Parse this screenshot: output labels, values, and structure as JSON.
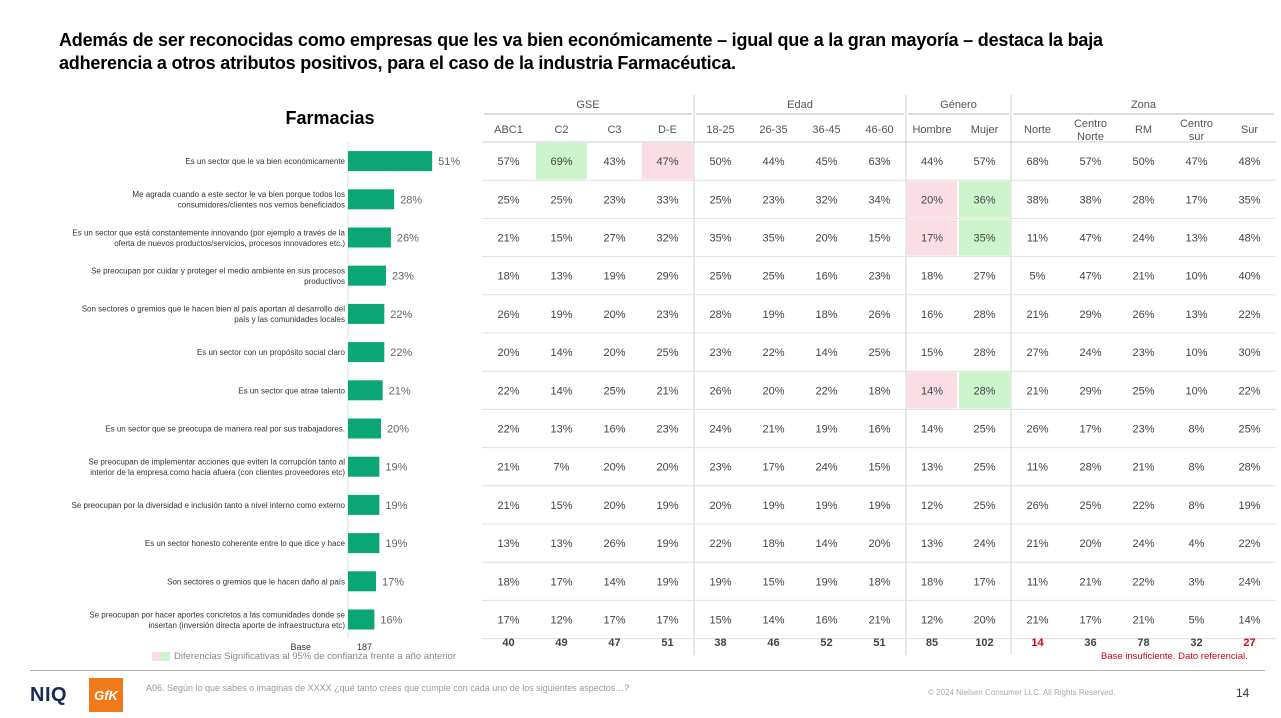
{
  "title": "Además de ser reconocidas como empresas que les va bien económicamente – igual que a la gran mayoría – destaca la baja adherencia a otros atributos positivos, para el caso de la industria Farmacéutica.",
  "chart_data": {
    "type": "bar",
    "title": "Farmacias",
    "orientation": "horizontal",
    "categories": [
      [
        "Es un sector que le va bien económicamente"
      ],
      [
        "Me agrada cuando a este sector le va bien porque todos los",
        "consumidores/clientes nos vemos beneficiados"
      ],
      [
        "Es un sector que está constantemente innovando (por ejemplo a través de la",
        "oferta de nuevos productos/servicios, procesos innovadores etc.)"
      ],
      [
        "Se preocupan por cuidar y proteger el medio ambiente en sus procesos",
        "productivos"
      ],
      [
        "Son sectores o gremios que le hacen bien al país aportan al desarrollo del",
        "país y las comunidades locales"
      ],
      [
        "Es un sector con un propósito social claro"
      ],
      [
        "Es un sector que atrae talento"
      ],
      [
        "Es un sector que se preocupa de manera real por sus trabajadores."
      ],
      [
        "Se preocupan de implementar acciones que eviten la corrupción tanto al",
        "interior de la empresa como hacia afuera (con clientes proveedores etc)"
      ],
      [
        "Se preocupan por la diversidad e inclusión tanto a nivel interno como externo"
      ],
      [
        "Es un sector honesto coherente entre lo que dice y hace"
      ],
      [
        "Son sectores o gremios que le hacen daño al país"
      ],
      [
        "Se preocupan por hacer aportes concretos a las comunidades donde se",
        "insertan (inversión directa aporte de infraestructura etc)"
      ]
    ],
    "values": [
      51,
      28,
      26,
      23,
      22,
      22,
      21,
      20,
      19,
      19,
      19,
      17,
      16
    ],
    "value_labels": [
      "51%",
      "28%",
      "26%",
      "23%",
      "22%",
      "22%",
      "21%",
      "20%",
      "19%",
      "19%",
      "19%",
      "17%",
      "16%"
    ],
    "bar_color": "#0aa676",
    "base_label": "Base",
    "base_value": "187"
  },
  "table": {
    "groups": [
      {
        "label": "GSE",
        "span": 4
      },
      {
        "label": "Edad",
        "span": 4
      },
      {
        "label": "Género",
        "span": 2
      },
      {
        "label": "Zona",
        "span": 5
      }
    ],
    "columns": [
      "ABC1",
      "C2",
      "C3",
      "D-E",
      "18-25",
      "26-35",
      "36-45",
      "46-60",
      "Hombre",
      "Mujer",
      "Norte",
      "Centro Norte",
      "RM",
      "Centro sur",
      "Sur"
    ],
    "rows": [
      [
        "57%",
        "69%",
        "43%",
        "47%",
        "50%",
        "44%",
        "45%",
        "63%",
        "44%",
        "57%",
        "68%",
        "57%",
        "50%",
        "47%",
        "48%"
      ],
      [
        "25%",
        "25%",
        "23%",
        "33%",
        "25%",
        "23%",
        "32%",
        "34%",
        "20%",
        "36%",
        "38%",
        "38%",
        "28%",
        "17%",
        "35%"
      ],
      [
        "21%",
        "15%",
        "27%",
        "32%",
        "35%",
        "35%",
        "20%",
        "15%",
        "17%",
        "35%",
        "11%",
        "47%",
        "24%",
        "13%",
        "48%"
      ],
      [
        "18%",
        "13%",
        "19%",
        "29%",
        "25%",
        "25%",
        "16%",
        "23%",
        "18%",
        "27%",
        "5%",
        "47%",
        "21%",
        "10%",
        "40%"
      ],
      [
        "26%",
        "19%",
        "20%",
        "23%",
        "28%",
        "19%",
        "18%",
        "26%",
        "16%",
        "28%",
        "21%",
        "29%",
        "26%",
        "13%",
        "22%"
      ],
      [
        "20%",
        "14%",
        "20%",
        "25%",
        "23%",
        "22%",
        "14%",
        "25%",
        "15%",
        "28%",
        "27%",
        "24%",
        "23%",
        "10%",
        "30%"
      ],
      [
        "22%",
        "14%",
        "25%",
        "21%",
        "26%",
        "20%",
        "22%",
        "18%",
        "14%",
        "28%",
        "21%",
        "29%",
        "25%",
        "10%",
        "22%"
      ],
      [
        "22%",
        "13%",
        "16%",
        "23%",
        "24%",
        "21%",
        "19%",
        "16%",
        "14%",
        "25%",
        "26%",
        "17%",
        "23%",
        "8%",
        "25%"
      ],
      [
        "21%",
        "7%",
        "20%",
        "20%",
        "23%",
        "17%",
        "24%",
        "15%",
        "13%",
        "25%",
        "11%",
        "28%",
        "21%",
        "8%",
        "28%"
      ],
      [
        "21%",
        "15%",
        "20%",
        "19%",
        "20%",
        "19%",
        "19%",
        "19%",
        "12%",
        "25%",
        "26%",
        "25%",
        "22%",
        "8%",
        "19%"
      ],
      [
        "13%",
        "13%",
        "26%",
        "19%",
        "22%",
        "18%",
        "14%",
        "20%",
        "13%",
        "24%",
        "21%",
        "20%",
        "24%",
        "4%",
        "22%"
      ],
      [
        "18%",
        "17%",
        "14%",
        "19%",
        "19%",
        "15%",
        "19%",
        "18%",
        "18%",
        "17%",
        "11%",
        "21%",
        "22%",
        "3%",
        "24%"
      ],
      [
        "17%",
        "12%",
        "17%",
        "17%",
        "15%",
        "14%",
        "16%",
        "21%",
        "12%",
        "20%",
        "21%",
        "17%",
        "21%",
        "5%",
        "14%"
      ]
    ],
    "highlights": [
      {
        "row": 0,
        "col": 1,
        "type": "green"
      },
      {
        "row": 0,
        "col": 3,
        "type": "pink"
      },
      {
        "row": 1,
        "col": 8,
        "type": "pink"
      },
      {
        "row": 1,
        "col": 9,
        "type": "green"
      },
      {
        "row": 2,
        "col": 8,
        "type": "pink"
      },
      {
        "row": 2,
        "col": 9,
        "type": "green"
      },
      {
        "row": 6,
        "col": 8,
        "type": "pink"
      },
      {
        "row": 6,
        "col": 9,
        "type": "green"
      }
    ],
    "highlight_colors": {
      "green": "#ccf5cc",
      "pink": "#fbdde6"
    },
    "bases": [
      "40",
      "49",
      "47",
      "51",
      "38",
      "46",
      "52",
      "51",
      "85",
      "102",
      "14",
      "36",
      "78",
      "32",
      "27"
    ],
    "insufficient_bases": [
      10,
      14
    ],
    "insufficient_color": "#d0021b"
  },
  "legend_note": "Diferencias Significativas al 95% de confianza frente a año anterior",
  "insufficient_note": "Base insuficiente. Dato referencial.",
  "footer_question": "A06. Según lo que sabes o imaginas de XXXX ¿qué tanto crees que cumple con cada uno de los siguientes aspectos…?",
  "copyright": "© 2024 Nielsen Consumer LLC. All Rights Reserved.",
  "page_number": "14",
  "logos": {
    "niq": "NIQ",
    "gfk": "GfK"
  }
}
